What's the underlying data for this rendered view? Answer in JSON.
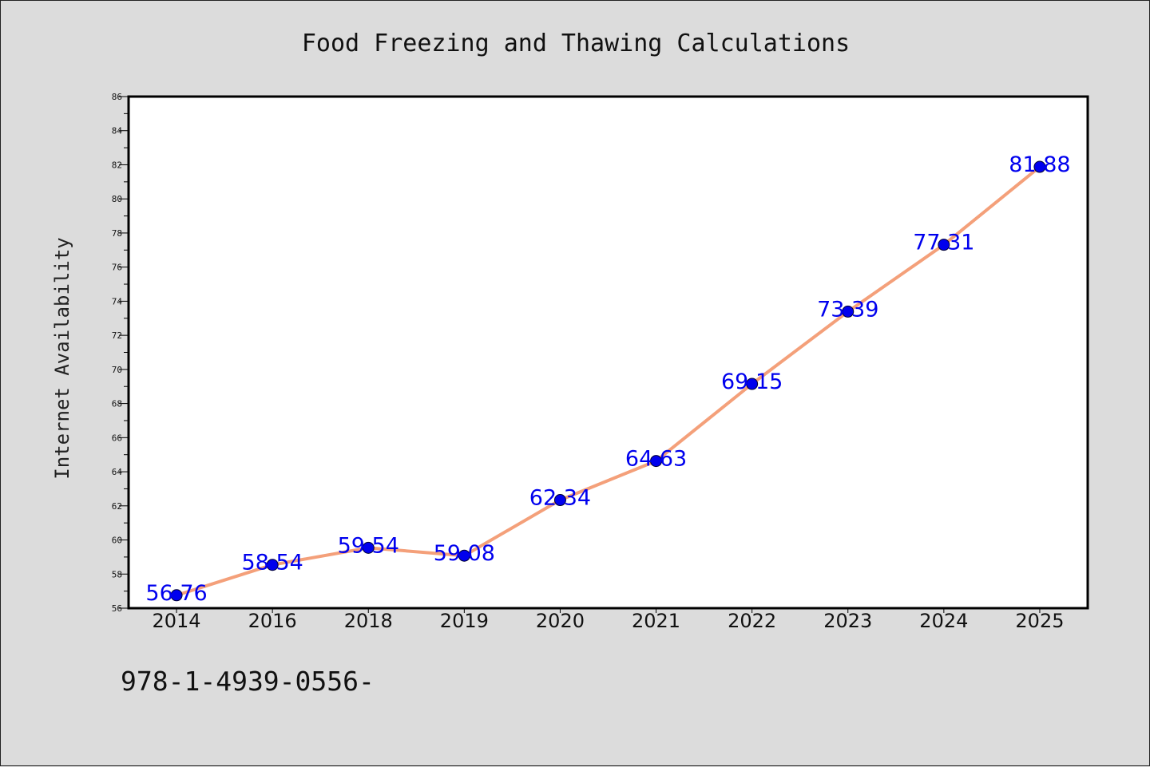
{
  "chart_data": {
    "type": "line",
    "title": "Food Freezing and Thawing Calculations",
    "xlabel": "",
    "ylabel": "Internet Availability",
    "categories": [
      "2014",
      "2016",
      "2018",
      "2019",
      "2020",
      "2021",
      "2022",
      "2023",
      "2024",
      "2025"
    ],
    "series": [
      {
        "values": [
          56.76,
          58.54,
          59.54,
          59.08,
          62.34,
          64.63,
          69.15,
          73.39,
          77.31,
          81.88
        ]
      }
    ],
    "data_labels": [
      "56.76",
      "58.54",
      "59.54",
      "59.08",
      "62.34",
      "64.63",
      "69.15",
      "73.39",
      "77.31",
      "81.88"
    ],
    "ylim": [
      56,
      86
    ],
    "yticks": [
      56,
      58,
      60,
      62,
      64,
      66,
      68,
      70,
      72,
      74,
      76,
      78,
      80,
      82,
      84,
      86
    ],
    "grid": false,
    "legend": "none",
    "line_color": "#f4a07a",
    "marker_color": "#0000ee",
    "label_color": "#0000ee"
  },
  "footnote": "978-1-4939-0556-"
}
